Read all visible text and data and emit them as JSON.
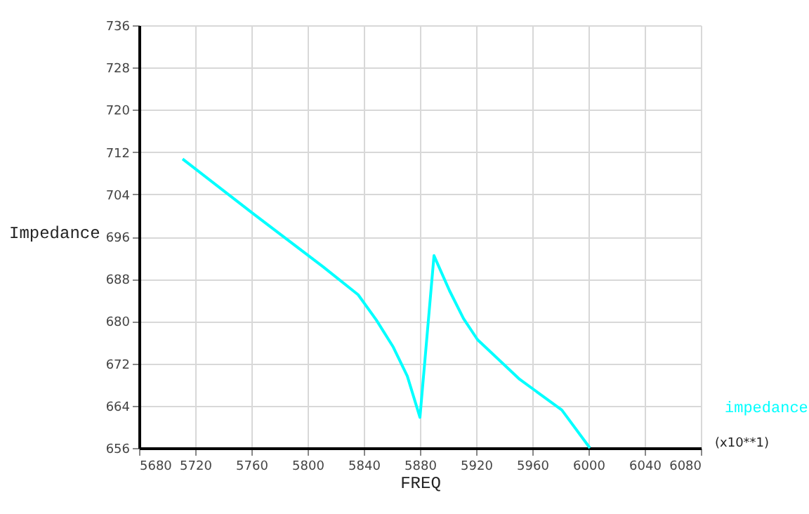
{
  "chart_data": {
    "type": "line",
    "xlabel": "FREQ",
    "ylabel": "Impedance",
    "annotations": [
      "(x10**1)"
    ],
    "x": [
      5711,
      5761,
      5811,
      5836,
      5849,
      5861,
      5871,
      5880,
      5890,
      5901,
      5911,
      5921,
      5951,
      5981,
      6001
    ],
    "series": [
      {
        "name": "impedance",
        "color": "#00ffff",
        "values": [
          710.7,
          700.4,
          690.3,
          685,
          680.2,
          675.1,
          669.6,
          661.8,
          692.4,
          685.8,
          680.5,
          676.5,
          669,
          663.2,
          656
        ]
      }
    ],
    "xlim": [
      5680,
      6080
    ],
    "xticks": [
      5680,
      5720,
      5760,
      5800,
      5840,
      5880,
      5920,
      5960,
      6000,
      6040,
      6080
    ],
    "ylim": [
      656,
      736
    ],
    "yticks": [
      656,
      664,
      672,
      680,
      688,
      696,
      704,
      712,
      720,
      728,
      736
    ],
    "grid": true,
    "legend": "bottom right",
    "marker": "none",
    "line_style": "solid"
  }
}
